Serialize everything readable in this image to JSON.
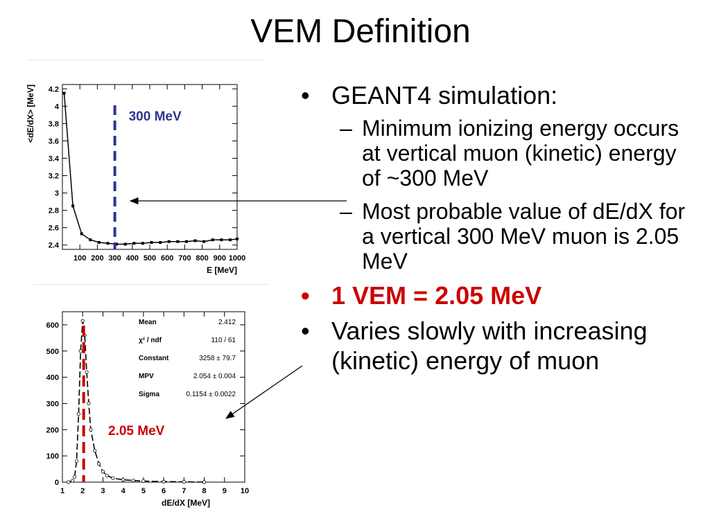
{
  "slide": {
    "title": "VEM Definition"
  },
  "bullets": {
    "b1": "GEANT4 simulation:",
    "b1_sub1": "Minimum ionizing energy occurs at vertical muon (kinetic) energy of ~300 MeV",
    "b1_sub2": "Most probable value of dE/dX for a vertical 300 MeV muon is 2.05 MeV",
    "b2": "1 VEM = 2.05 MeV",
    "b3": "Varies slowly with increasing (kinetic) energy of muon",
    "bullet_char": "•",
    "dash_char": "–"
  },
  "colors": {
    "accent_red": "#cc0000",
    "accent_blue": "#2a3590"
  },
  "chart_data": [
    {
      "type": "line",
      "xlabel": "E [MeV]",
      "ylabel": "<dE/dX> [MeV]",
      "xlim": [
        0,
        1000
      ],
      "ylim": [
        2.35,
        4.25
      ],
      "x_ticks": [
        100,
        200,
        300,
        400,
        500,
        600,
        700,
        800,
        900,
        1000
      ],
      "y_ticks": [
        "2.4",
        "2.6",
        "2.8",
        "3",
        "3.2",
        "3.4",
        "3.6",
        "3.8",
        "4",
        "4.2"
      ],
      "x": [
        10,
        60,
        110,
        160,
        210,
        260,
        310,
        360,
        410,
        460,
        510,
        560,
        610,
        660,
        710,
        760,
        810,
        860,
        910,
        960,
        1000
      ],
      "y": [
        4.15,
        2.85,
        2.53,
        2.46,
        2.43,
        2.42,
        2.41,
        2.41,
        2.42,
        2.42,
        2.43,
        2.43,
        2.44,
        2.44,
        2.44,
        2.45,
        2.44,
        2.46,
        2.46,
        2.46,
        2.47
      ],
      "marker_line": {
        "x": 300,
        "label": "300 MeV",
        "color": "#2a3590"
      },
      "grid": false
    },
    {
      "type": "histogram",
      "xlabel": "dE/dX [MeV]",
      "ylabel": "",
      "xlim": [
        1,
        10
      ],
      "ylim": [
        0,
        650
      ],
      "x_ticks": [
        "1",
        "2",
        "3",
        "4",
        "5",
        "6",
        "7",
        "8",
        "9",
        "10"
      ],
      "y_ticks": [
        "0",
        "100",
        "200",
        "300",
        "400",
        "500",
        "600"
      ],
      "x": [
        1.3,
        1.5,
        1.6,
        1.7,
        1.8,
        1.9,
        2.0,
        2.1,
        2.2,
        2.3,
        2.4,
        2.6,
        2.8,
        3.0,
        3.2,
        3.5,
        4.0,
        4.5,
        5.0,
        6.0,
        7.0,
        8.0
      ],
      "y": [
        0,
        5,
        20,
        80,
        260,
        500,
        615,
        560,
        420,
        300,
        200,
        120,
        70,
        40,
        25,
        15,
        9,
        6,
        4,
        2,
        1,
        0
      ],
      "marker_line": {
        "x": 2.05,
        "label": "2.05 MeV",
        "color": "#cc0000"
      },
      "stats": [
        {
          "name": "Mean",
          "value": "2.412"
        },
        {
          "name": "χ² / ndf",
          "value": "110 / 61"
        },
        {
          "name": "Constant",
          "value": "3258 ± 79.7"
        },
        {
          "name": "MPV",
          "value": "2.054 ± 0.004"
        },
        {
          "name": "Sigma",
          "value": "0.1154 ± 0.0022"
        }
      ],
      "grid": false
    }
  ]
}
